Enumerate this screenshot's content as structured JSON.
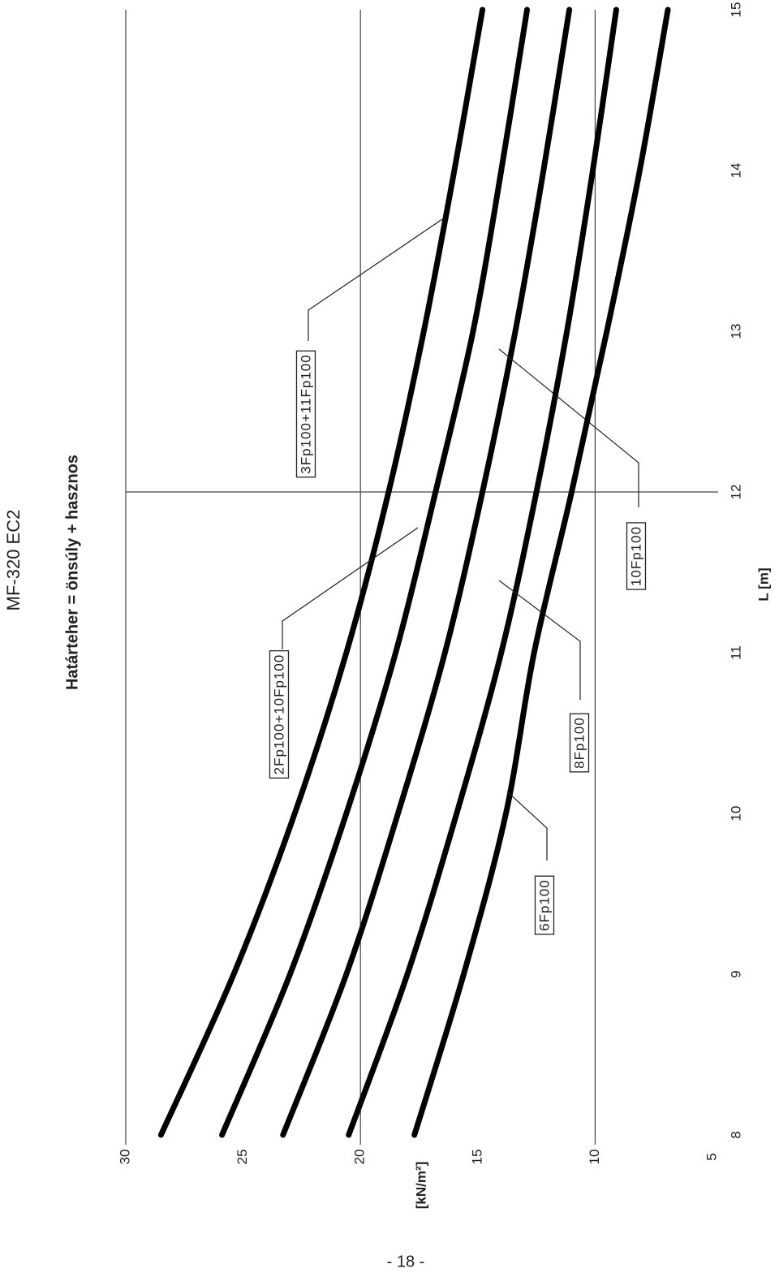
{
  "header": {
    "title": "MF-320 EC2"
  },
  "chart_data": {
    "type": "line",
    "title": "Határteher = önsúly + hasznos",
    "x_label": "L [m]",
    "y_label": "[kN/m²]",
    "x": [
      8,
      9,
      10,
      11,
      12,
      13,
      14,
      15
    ],
    "xlim": [
      8,
      15
    ],
    "xticks": [
      8,
      9,
      10,
      11,
      12,
      13,
      14,
      15
    ],
    "ylim": [
      5,
      30
    ],
    "yticks": [
      5,
      10,
      15,
      20,
      25,
      30
    ],
    "series": [
      {
        "name": "3Fp100+11Fp100",
        "color": "#000000",
        "values": [
          28.5,
          25.4,
          22.8,
          20.6,
          18.8,
          17.3,
          16.0,
          14.8
        ]
      },
      {
        "name": "2Fp100+10Fp100",
        "color": "#000000",
        "values": [
          25.9,
          23.0,
          20.6,
          18.5,
          16.8,
          15.2,
          14.0,
          12.9
        ]
      },
      {
        "name": "10Fp100",
        "color": "#000000",
        "values": [
          23.3,
          20.6,
          18.4,
          16.4,
          14.8,
          13.4,
          12.2,
          11.1
        ]
      },
      {
        "name": "8Fp100",
        "color": "#000000",
        "values": [
          20.5,
          18.0,
          15.9,
          14.0,
          12.5,
          11.2,
          10.1,
          9.1
        ]
      },
      {
        "name": "6Fp100",
        "color": "#000000",
        "values": [
          17.7,
          15.6,
          13.8,
          12.6,
          11.0,
          9.5,
          8.1,
          6.9
        ]
      }
    ]
  },
  "footer": {
    "page": "- 18 -"
  }
}
